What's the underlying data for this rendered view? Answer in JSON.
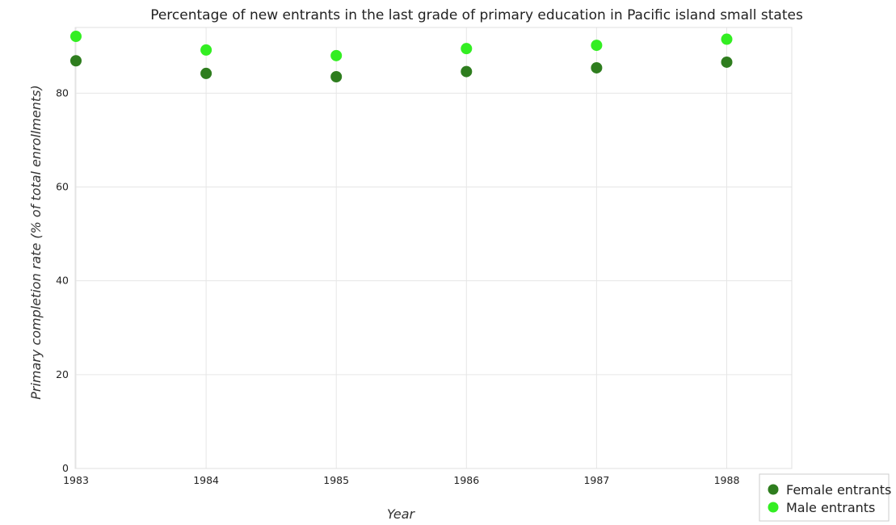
{
  "chart_data": {
    "type": "scatter",
    "title": "Percentage of new entrants in the last grade of primary education in Pacific island small states",
    "xlabel": "Year",
    "ylabel": "Primary completion rate (% of total enrollments)",
    "categories": [
      "1983",
      "1984",
      "1985",
      "1986",
      "1987",
      "1988"
    ],
    "ylim": [
      0,
      94
    ],
    "yticks": [
      0,
      20,
      40,
      60,
      80
    ],
    "grid": true,
    "legend_position": "bottom-right",
    "series": [
      {
        "name": "Female entrants",
        "color": "#2e7d1e",
        "values": [
          86.9,
          84.2,
          83.5,
          84.6,
          85.4,
          86.6
        ]
      },
      {
        "name": "Male entrants",
        "color": "#33ee22",
        "values": [
          92.1,
          89.2,
          88.0,
          89.5,
          90.2,
          91.5
        ]
      }
    ]
  }
}
